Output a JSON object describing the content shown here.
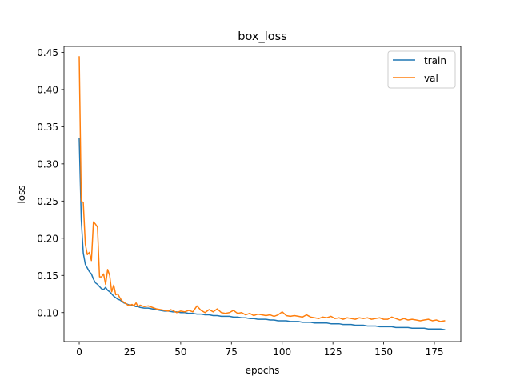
{
  "chart_data": {
    "type": "line",
    "title": "box_loss",
    "xlabel": "epochs",
    "ylabel": "loss",
    "xlim": [
      -7.5,
      188
    ],
    "ylim": [
      0.061,
      0.458
    ],
    "xticks": [
      0,
      25,
      50,
      75,
      100,
      125,
      150,
      175
    ],
    "yticks": [
      0.1,
      0.15,
      0.2,
      0.25,
      0.3,
      0.35,
      0.4,
      0.45
    ],
    "xtick_labels": [
      "0",
      "25",
      "50",
      "75",
      "100",
      "125",
      "150",
      "175"
    ],
    "ytick_labels": [
      "0.10",
      "0.15",
      "0.20",
      "0.25",
      "0.30",
      "0.35",
      "0.40",
      "0.45"
    ],
    "grid": false,
    "legend_position": "top-right",
    "series": [
      {
        "name": "train",
        "color": "#1f77b4",
        "points": [
          [
            0,
            0.334
          ],
          [
            1,
            0.225
          ],
          [
            2,
            0.18
          ],
          [
            3,
            0.165
          ],
          [
            4,
            0.16
          ],
          [
            5,
            0.155
          ],
          [
            6,
            0.152
          ],
          [
            7,
            0.145
          ],
          [
            8,
            0.14
          ],
          [
            9,
            0.138
          ],
          [
            10,
            0.135
          ],
          [
            11,
            0.132
          ],
          [
            12,
            0.131
          ],
          [
            13,
            0.134
          ],
          [
            14,
            0.13
          ],
          [
            15,
            0.128
          ],
          [
            16,
            0.125
          ],
          [
            17,
            0.122
          ],
          [
            18,
            0.12
          ],
          [
            19,
            0.118
          ],
          [
            20,
            0.117
          ],
          [
            21,
            0.115
          ],
          [
            22,
            0.113
          ],
          [
            23,
            0.112
          ],
          [
            24,
            0.111
          ],
          [
            25,
            0.11
          ],
          [
            26,
            0.11
          ],
          [
            27,
            0.109
          ],
          [
            28,
            0.108
          ],
          [
            29,
            0.108
          ],
          [
            30,
            0.107
          ],
          [
            32,
            0.106
          ],
          [
            34,
            0.106
          ],
          [
            36,
            0.105
          ],
          [
            38,
            0.104
          ],
          [
            40,
            0.103
          ],
          [
            42,
            0.102
          ],
          [
            44,
            0.102
          ],
          [
            46,
            0.101
          ],
          [
            48,
            0.101
          ],
          [
            50,
            0.1
          ],
          [
            52,
            0.1
          ],
          [
            54,
            0.099
          ],
          [
            56,
            0.099
          ],
          [
            58,
            0.098
          ],
          [
            60,
            0.098
          ],
          [
            62,
            0.097
          ],
          [
            64,
            0.097
          ],
          [
            66,
            0.096
          ],
          [
            68,
            0.096
          ],
          [
            70,
            0.095
          ],
          [
            72,
            0.095
          ],
          [
            74,
            0.095
          ],
          [
            76,
            0.094
          ],
          [
            78,
            0.094
          ],
          [
            80,
            0.093
          ],
          [
            82,
            0.093
          ],
          [
            84,
            0.092
          ],
          [
            86,
            0.092
          ],
          [
            88,
            0.091
          ],
          [
            90,
            0.091
          ],
          [
            92,
            0.091
          ],
          [
            94,
            0.09
          ],
          [
            96,
            0.09
          ],
          [
            98,
            0.089
          ],
          [
            100,
            0.089
          ],
          [
            102,
            0.089
          ],
          [
            104,
            0.088
          ],
          [
            106,
            0.088
          ],
          [
            108,
            0.088
          ],
          [
            110,
            0.087
          ],
          [
            112,
            0.087
          ],
          [
            114,
            0.087
          ],
          [
            116,
            0.086
          ],
          [
            118,
            0.086
          ],
          [
            120,
            0.086
          ],
          [
            122,
            0.086
          ],
          [
            124,
            0.085
          ],
          [
            126,
            0.085
          ],
          [
            128,
            0.085
          ],
          [
            130,
            0.084
          ],
          [
            132,
            0.084
          ],
          [
            134,
            0.084
          ],
          [
            136,
            0.083
          ],
          [
            138,
            0.083
          ],
          [
            140,
            0.083
          ],
          [
            142,
            0.082
          ],
          [
            144,
            0.082
          ],
          [
            146,
            0.082
          ],
          [
            148,
            0.081
          ],
          [
            150,
            0.081
          ],
          [
            152,
            0.081
          ],
          [
            154,
            0.081
          ],
          [
            156,
            0.08
          ],
          [
            158,
            0.08
          ],
          [
            160,
            0.08
          ],
          [
            162,
            0.08
          ],
          [
            164,
            0.079
          ],
          [
            166,
            0.079
          ],
          [
            168,
            0.079
          ],
          [
            170,
            0.079
          ],
          [
            172,
            0.078
          ],
          [
            174,
            0.078
          ],
          [
            176,
            0.078
          ],
          [
            178,
            0.078
          ],
          [
            180,
            0.077
          ]
        ]
      },
      {
        "name": "val",
        "color": "#ff7f0e",
        "points": [
          [
            0,
            0.444
          ],
          [
            1,
            0.25
          ],
          [
            2,
            0.248
          ],
          [
            3,
            0.192
          ],
          [
            4,
            0.178
          ],
          [
            5,
            0.181
          ],
          [
            6,
            0.17
          ],
          [
            7,
            0.222
          ],
          [
            8,
            0.219
          ],
          [
            9,
            0.215
          ],
          [
            10,
            0.148
          ],
          [
            11,
            0.148
          ],
          [
            12,
            0.152
          ],
          [
            13,
            0.138
          ],
          [
            14,
            0.158
          ],
          [
            15,
            0.15
          ],
          [
            16,
            0.128
          ],
          [
            17,
            0.137
          ],
          [
            18,
            0.124
          ],
          [
            19,
            0.125
          ],
          [
            20,
            0.12
          ],
          [
            21,
            0.116
          ],
          [
            22,
            0.114
          ],
          [
            23,
            0.112
          ],
          [
            24,
            0.11
          ],
          [
            25,
            0.11
          ],
          [
            26,
            0.111
          ],
          [
            27,
            0.109
          ],
          [
            28,
            0.113
          ],
          [
            29,
            0.108
          ],
          [
            30,
            0.11
          ],
          [
            32,
            0.108
          ],
          [
            34,
            0.109
          ],
          [
            36,
            0.107
          ],
          [
            38,
            0.105
          ],
          [
            40,
            0.104
          ],
          [
            42,
            0.103
          ],
          [
            44,
            0.102
          ],
          [
            45,
            0.104
          ],
          [
            46,
            0.103
          ],
          [
            48,
            0.1
          ],
          [
            50,
            0.102
          ],
          [
            52,
            0.101
          ],
          [
            54,
            0.103
          ],
          [
            56,
            0.101
          ],
          [
            58,
            0.109
          ],
          [
            60,
            0.103
          ],
          [
            62,
            0.1
          ],
          [
            64,
            0.104
          ],
          [
            66,
            0.101
          ],
          [
            68,
            0.105
          ],
          [
            70,
            0.1
          ],
          [
            72,
            0.099
          ],
          [
            74,
            0.1
          ],
          [
            76,
            0.103
          ],
          [
            78,
            0.099
          ],
          [
            80,
            0.1
          ],
          [
            82,
            0.097
          ],
          [
            84,
            0.099
          ],
          [
            86,
            0.096
          ],
          [
            88,
            0.098
          ],
          [
            90,
            0.097
          ],
          [
            92,
            0.096
          ],
          [
            94,
            0.097
          ],
          [
            96,
            0.095
          ],
          [
            98,
            0.097
          ],
          [
            100,
            0.101
          ],
          [
            102,
            0.096
          ],
          [
            104,
            0.095
          ],
          [
            106,
            0.096
          ],
          [
            108,
            0.095
          ],
          [
            110,
            0.094
          ],
          [
            112,
            0.097
          ],
          [
            114,
            0.094
          ],
          [
            116,
            0.093
          ],
          [
            118,
            0.092
          ],
          [
            120,
            0.094
          ],
          [
            122,
            0.093
          ],
          [
            124,
            0.095
          ],
          [
            126,
            0.092
          ],
          [
            128,
            0.093
          ],
          [
            130,
            0.091
          ],
          [
            132,
            0.093
          ],
          [
            134,
            0.092
          ],
          [
            136,
            0.091
          ],
          [
            138,
            0.093
          ],
          [
            140,
            0.092
          ],
          [
            142,
            0.093
          ],
          [
            144,
            0.091
          ],
          [
            146,
            0.092
          ],
          [
            148,
            0.093
          ],
          [
            150,
            0.091
          ],
          [
            152,
            0.091
          ],
          [
            154,
            0.094
          ],
          [
            156,
            0.092
          ],
          [
            158,
            0.09
          ],
          [
            160,
            0.092
          ],
          [
            162,
            0.09
          ],
          [
            164,
            0.091
          ],
          [
            166,
            0.09
          ],
          [
            168,
            0.089
          ],
          [
            170,
            0.09
          ],
          [
            172,
            0.091
          ],
          [
            174,
            0.089
          ],
          [
            176,
            0.09
          ],
          [
            178,
            0.088
          ],
          [
            180,
            0.089
          ]
        ]
      }
    ]
  }
}
